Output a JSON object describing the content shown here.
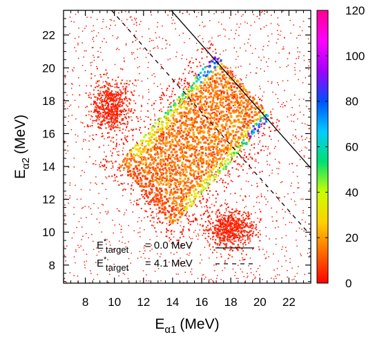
{
  "chart_data": {
    "type": "heatmap",
    "xlabel": {
      "base": "E",
      "sub": "α1",
      "unit": "(MeV)"
    },
    "ylabel": {
      "base": "E",
      "sub": "α2",
      "unit": "(MeV)"
    },
    "xlim": [
      6.5,
      23.5
    ],
    "ylim": [
      6.9,
      23.5
    ],
    "xticks": [
      8,
      10,
      12,
      14,
      16,
      18,
      20,
      22
    ],
    "yticks": [
      8,
      10,
      12,
      14,
      16,
      18,
      20,
      22
    ],
    "colorbar": {
      "range": [
        0,
        120
      ],
      "ticks": [
        0,
        20,
        40,
        60,
        80,
        100,
        120
      ],
      "colors": [
        "#ff0000",
        "#ff6a00",
        "#ffd000",
        "#c8ff00",
        "#00e070",
        "#00ccff",
        "#0050ff",
        "#a000ff",
        "#ff00ff",
        "#ff0090"
      ]
    },
    "lines": [
      {
        "label_base": "E",
        "label_sup": "*",
        "label_sub": "target",
        "label_value": "= 0.0 MeV",
        "style": "solid",
        "sum_energy": 37.4
      },
      {
        "label_base": "E",
        "label_sup": "*",
        "label_sub": "target",
        "label_value": "= 4.1 MeV",
        "style": "dashed",
        "sum_energy": 33.3
      }
    ],
    "regions": [
      {
        "name": "main-band",
        "corners": [
          [
            10.5,
            14.0
          ],
          [
            17.0,
            20.7
          ],
          [
            20.7,
            17.0
          ],
          [
            14.0,
            10.5
          ]
        ],
        "typical_counts": 15,
        "edge_counts": 60,
        "peak_counts": 85
      },
      {
        "name": "blob-upper-left",
        "center": [
          9.8,
          17.6
        ],
        "radius": [
          1.2,
          1.5
        ]
      },
      {
        "name": "blob-lower-right",
        "center": [
          18.0,
          10.2
        ],
        "radius": [
          1.5,
          1.1
        ]
      }
    ],
    "title": ""
  }
}
